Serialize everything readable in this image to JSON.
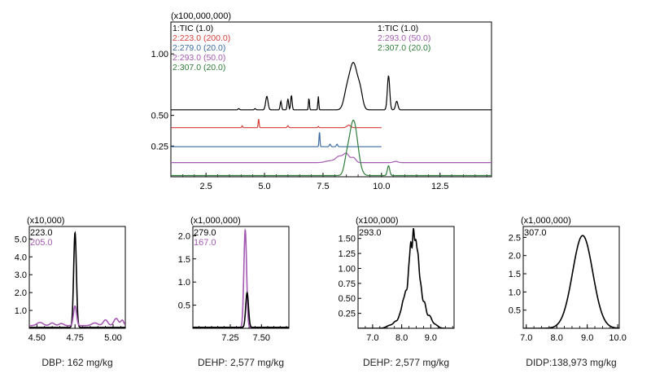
{
  "chart_data": [
    {
      "type": "line",
      "scale_label": "(x100,000,000)",
      "xlim": [
        1.0,
        14.7
      ],
      "ylim": [
        0,
        1.26
      ],
      "x_ticks": [
        "2.5",
        "5.0",
        "7.5",
        "10.0",
        "12.5"
      ],
      "x_tick_values": [
        2.5,
        5.0,
        7.5,
        10.0,
        12.5
      ],
      "y_ticks": [
        "0.25",
        "0.50",
        "1.00"
      ],
      "y_tick_values": [
        0.25,
        0.5,
        1.0
      ],
      "legend_left": [
        {
          "label": "1:TIC (1.0)",
          "color": "#000000"
        },
        {
          "label": "2:223.0 (200.0)",
          "color": "#d43f3a"
        },
        {
          "label": "2:279.0 (20.0)",
          "color": "#3b6aa0"
        },
        {
          "label": "2:293.0 (50.0)",
          "color": "#a45ab2"
        },
        {
          "label": "2:307.0 (20.0)",
          "color": "#2f7d3a"
        }
      ],
      "legend_right": [
        {
          "label": "1:TIC (1.0)",
          "color": "#000000"
        },
        {
          "label": "2:293.0 (50.0)",
          "color": "#a45ab2"
        },
        {
          "label": "2:307.0 (20.0)",
          "color": "#2f7d3a"
        }
      ],
      "series": [
        {
          "name": "1:TIC (1.0)",
          "color": "#000000",
          "baseline": 0.545,
          "x_end": 14.7,
          "peaks": [
            [
              3.9,
              0.01,
              0.03
            ],
            [
              4.6,
              0.01,
              0.03
            ],
            [
              5.1,
              0.11,
              0.05
            ],
            [
              5.7,
              0.07,
              0.03
            ],
            [
              6.0,
              0.09,
              0.03
            ],
            [
              6.15,
              0.12,
              0.03
            ],
            [
              6.9,
              0.1,
              0.02
            ],
            [
              7.3,
              0.11,
              0.02
            ],
            [
              8.5,
              0.1,
              0.12
            ],
            [
              8.8,
              0.38,
              0.18
            ],
            [
              9.1,
              0.1,
              0.1
            ],
            [
              10.3,
              0.28,
              0.05
            ],
            [
              10.65,
              0.07,
              0.05
            ]
          ]
        },
        {
          "name": "2:223.0 (200.0)",
          "color": "#d43f3a",
          "baseline": 0.4,
          "x_end": 10.0,
          "peaks": [
            [
              4.75,
              0.07,
              0.02
            ],
            [
              4.05,
              0.015,
              0.02
            ],
            [
              6.0,
              0.015,
              0.03
            ],
            [
              7.3,
              0.01,
              0.02
            ],
            [
              8.6,
              0.02,
              0.08
            ]
          ]
        },
        {
          "name": "2:279.0 (20.0)",
          "color": "#3b6aa0",
          "baseline": 0.245,
          "x_end": 10.0,
          "peaks": [
            [
              7.35,
              0.12,
              0.02
            ],
            [
              7.8,
              0.02,
              0.03
            ],
            [
              8.1,
              0.02,
              0.03
            ]
          ]
        },
        {
          "name": "2:293.0 (50.0)",
          "color": "#a45ab2",
          "baseline": 0.115,
          "x_end": 14.7,
          "peaks": [
            [
              7.8,
              0.015,
              0.2
            ],
            [
              8.2,
              0.05,
              0.15
            ],
            [
              8.5,
              0.07,
              0.12
            ],
            [
              8.8,
              0.04,
              0.1
            ],
            [
              10.6,
              0.01,
              0.1
            ]
          ]
        },
        {
          "name": "2:307.0 (20.0)",
          "color": "#2f7d3a",
          "baseline": 0.01,
          "x_end": 14.7,
          "peaks": [
            [
              8.8,
              0.45,
              0.18
            ],
            [
              8.5,
              0.08,
              0.1
            ],
            [
              10.3,
              0.08,
              0.05
            ]
          ]
        }
      ]
    },
    {
      "type": "line",
      "scale_label": "(x10,000)",
      "caption": "DBP: 162 mg/kg",
      "xlim": [
        4.45,
        5.08
      ],
      "ylim": [
        0,
        5.7
      ],
      "x_ticks": [
        "4.50",
        "4.75",
        "5.00"
      ],
      "x_tick_values": [
        4.5,
        4.75,
        5.0
      ],
      "y_ticks": [
        "1.0",
        "2.0",
        "3.0",
        "4.0",
        "5.0"
      ],
      "y_tick_values": [
        1.0,
        2.0,
        3.0,
        4.0,
        5.0
      ],
      "legend": [
        {
          "label": "223.0",
          "color": "#000000"
        },
        {
          "label": "205.0",
          "color": "#a45ab2"
        }
      ],
      "series": [
        {
          "name": "223.0",
          "color": "#000000",
          "baseline": 0.05,
          "peaks": [
            [
              4.75,
              5.3,
              0.009
            ]
          ]
        },
        {
          "name": "205.0",
          "color": "#a45ab2",
          "baseline": 0.15,
          "peaks": [
            [
              4.52,
              0.18,
              0.02
            ],
            [
              4.6,
              0.15,
              0.015
            ],
            [
              4.66,
              0.12,
              0.015
            ],
            [
              4.75,
              1.1,
              0.01
            ],
            [
              4.88,
              0.15,
              0.02
            ],
            [
              4.95,
              0.32,
              0.015
            ],
            [
              5.02,
              0.4,
              0.015
            ],
            [
              5.06,
              0.3,
              0.01
            ]
          ]
        }
      ]
    },
    {
      "type": "line",
      "scale_label": "(x1,000,000)",
      "caption": "DEHP: 2,577 mg/kg",
      "xlim": [
        6.95,
        7.72
      ],
      "ylim": [
        0,
        2.2
      ],
      "x_ticks": [
        "7.25",
        "7.50"
      ],
      "x_tick_values": [
        7.25,
        7.5
      ],
      "y_ticks": [
        "0.5",
        "1.0",
        "1.5",
        "2.0"
      ],
      "y_tick_values": [
        0.5,
        1.0,
        1.5,
        2.0
      ],
      "legend": [
        {
          "label": "279.0",
          "color": "#000000"
        },
        {
          "label": "167.0",
          "color": "#a45ab2"
        }
      ],
      "series": [
        {
          "name": "167.0",
          "color": "#a45ab2",
          "baseline": 0.02,
          "peaks": [
            [
              7.37,
              2.1,
              0.011
            ]
          ]
        },
        {
          "name": "279.0",
          "color": "#000000",
          "baseline": 0.02,
          "peaks": [
            [
              7.385,
              0.75,
              0.011
            ]
          ]
        }
      ]
    },
    {
      "type": "line",
      "scale_label": "(x100,000)",
      "caption": "DEHP: 2,577 mg/kg",
      "xlim": [
        6.5,
        9.8
      ],
      "ylim": [
        0,
        1.7
      ],
      "x_ticks": [
        "7.0",
        "8.0",
        "9.0"
      ],
      "x_tick_values": [
        7.0,
        8.0,
        9.0
      ],
      "y_ticks": [
        "0.25",
        "0.50",
        "0.75",
        "1.00",
        "1.25",
        "1.50"
      ],
      "y_tick_values": [
        0.25,
        0.5,
        0.75,
        1.0,
        1.25,
        1.5
      ],
      "legend": [
        {
          "label": "293.0",
          "color": "#000000"
        }
      ],
      "series": [
        {
          "name": "293.0",
          "color": "#000000",
          "baseline": 0.0,
          "peaks": [
            [
              7.6,
              0.05,
              0.12
            ],
            [
              7.8,
              0.1,
              0.08
            ],
            [
              7.95,
              0.2,
              0.06
            ],
            [
              8.05,
              0.35,
              0.05
            ],
            [
              8.15,
              0.55,
              0.05
            ],
            [
              8.25,
              0.85,
              0.04
            ],
            [
              8.32,
              1.15,
              0.035
            ],
            [
              8.4,
              1.4,
              0.035
            ],
            [
              8.48,
              1.25,
              0.04
            ],
            [
              8.56,
              0.95,
              0.04
            ],
            [
              8.65,
              0.65,
              0.05
            ],
            [
              8.78,
              0.4,
              0.06
            ],
            [
              8.95,
              0.2,
              0.08
            ],
            [
              9.15,
              0.06,
              0.1
            ]
          ]
        }
      ]
    },
    {
      "type": "line",
      "scale_label": "(x1,000,000)",
      "caption": "DIDP:138,973 mg/kg",
      "xlim": [
        6.9,
        10.05
      ],
      "ylim": [
        0,
        2.8
      ],
      "x_ticks": [
        "7.0",
        "8.0",
        "9.0",
        "10.0"
      ],
      "x_tick_values": [
        7.0,
        8.0,
        9.0,
        10.0
      ],
      "y_ticks": [
        "0.5",
        "1.0",
        "1.5",
        "2.0",
        "2.5"
      ],
      "y_tick_values": [
        0.5,
        1.0,
        1.5,
        2.0,
        2.5
      ],
      "legend": [
        {
          "label": "307.0",
          "color": "#000000"
        }
      ],
      "series": [
        {
          "name": "307.0",
          "color": "#000000",
          "baseline": 0.0,
          "peaks": [
            [
              8.85,
              2.55,
              0.33
            ]
          ]
        }
      ]
    }
  ]
}
